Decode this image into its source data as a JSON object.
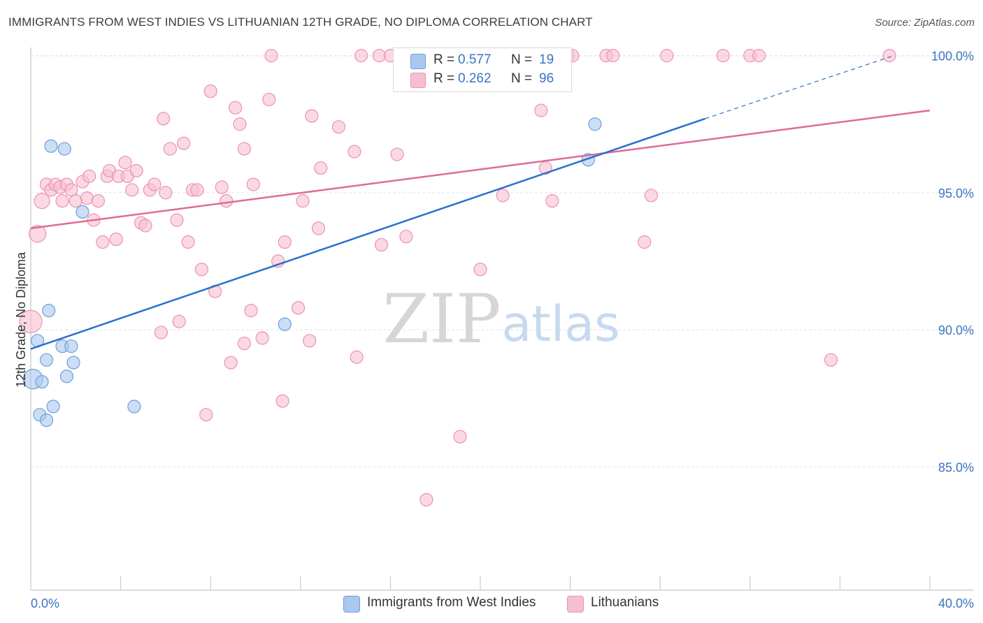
{
  "header": {
    "title": "IMMIGRANTS FROM WEST INDIES VS LITHUANIAN 12TH GRADE, NO DIPLOMA CORRELATION CHART",
    "source": "Source: ZipAtlas.com"
  },
  "legend": {
    "blue": {
      "r_label": "R =",
      "r_value": "0.577",
      "n_label": "N =",
      "n_value": "19"
    },
    "pink": {
      "r_label": "R =",
      "r_value": "0.262",
      "n_label": "N =",
      "n_value": "96"
    }
  },
  "colors": {
    "blue_fill": "#a9c8ef",
    "blue_stroke": "#6f9fd8",
    "blue_line": "#2a6fcc",
    "pink_fill": "#f6bfd0",
    "pink_stroke": "#ec92ae",
    "pink_line": "#e0699a",
    "axis_label": "#3a74c4",
    "grid": "#e2e2e2"
  },
  "watermark": {
    "part1": "ZIP",
    "part2": "atlas"
  },
  "chart_data": {
    "type": "scatter",
    "title": "IMMIGRANTS FROM WEST INDIES VS LITHUANIAN 12TH GRADE, NO DIPLOMA CORRELATION CHART",
    "xlabel": "",
    "ylabel": "12th Grade, No Diploma",
    "xlim": [
      0,
      40
    ],
    "ylim": [
      80.5,
      100.5
    ],
    "x_tick_labels": [
      "0.0%",
      "40.0%"
    ],
    "y_ticks": [
      85,
      90,
      95,
      100
    ],
    "y_tick_labels": [
      "85.0%",
      "90.0%",
      "95.0%",
      "100.0%"
    ],
    "grid": true,
    "legend_position": "top-center",
    "series": [
      {
        "name": "Immigrants from West Indies",
        "color": "#a9c8ef",
        "points": [
          [
            0.1,
            88.2,
            14
          ],
          [
            0.3,
            89.6,
            9
          ],
          [
            0.4,
            86.9,
            9
          ],
          [
            0.5,
            88.1,
            9
          ],
          [
            0.7,
            88.9,
            9
          ],
          [
            0.7,
            86.7,
            9
          ],
          [
            0.8,
            90.7,
            9
          ],
          [
            0.9,
            96.7,
            9
          ],
          [
            1.0,
            87.2,
            9
          ],
          [
            1.4,
            89.4,
            9
          ],
          [
            1.5,
            96.6,
            9
          ],
          [
            1.6,
            88.3,
            9
          ],
          [
            1.8,
            89.4,
            9
          ],
          [
            1.9,
            88.8,
            9
          ],
          [
            2.3,
            94.3,
            9
          ],
          [
            4.6,
            87.2,
            9
          ],
          [
            11.3,
            90.2,
            9
          ],
          [
            24.8,
            96.2,
            9
          ],
          [
            25.1,
            97.5,
            9
          ]
        ],
        "trend": {
          "x": [
            0,
            30
          ],
          "y": [
            89.3,
            97.7
          ],
          "dash_x": [
            30,
            38.4
          ],
          "dash_y": [
            97.7,
            100.0
          ]
        }
      },
      {
        "name": "Lithuanians",
        "color": "#f6bfd0",
        "points": [
          [
            0.0,
            90.3,
            16
          ],
          [
            0.3,
            93.5,
            12
          ],
          [
            0.5,
            94.7,
            11
          ],
          [
            0.7,
            95.3,
            9
          ],
          [
            0.9,
            95.1,
            9
          ],
          [
            1.1,
            95.3,
            9
          ],
          [
            1.3,
            95.2,
            9
          ],
          [
            1.4,
            94.7,
            9
          ],
          [
            1.6,
            95.3,
            9
          ],
          [
            1.8,
            95.1,
            9
          ],
          [
            2.0,
            94.7,
            9
          ],
          [
            2.3,
            95.4,
            9
          ],
          [
            2.5,
            94.8,
            9
          ],
          [
            2.6,
            95.6,
            9
          ],
          [
            2.8,
            94.0,
            9
          ],
          [
            3.0,
            94.7,
            9
          ],
          [
            3.2,
            93.2,
            9
          ],
          [
            3.4,
            95.6,
            9
          ],
          [
            3.5,
            95.8,
            9
          ],
          [
            3.8,
            93.3,
            9
          ],
          [
            3.9,
            95.6,
            9
          ],
          [
            4.2,
            96.1,
            9
          ],
          [
            4.3,
            95.6,
            9
          ],
          [
            4.5,
            95.1,
            9
          ],
          [
            4.7,
            95.8,
            9
          ],
          [
            4.9,
            93.9,
            9
          ],
          [
            5.1,
            93.8,
            9
          ],
          [
            5.3,
            95.1,
            9
          ],
          [
            5.5,
            95.3,
            9
          ],
          [
            5.8,
            89.9,
            9
          ],
          [
            5.9,
            97.7,
            9
          ],
          [
            6.0,
            95.0,
            9
          ],
          [
            6.2,
            96.6,
            9
          ],
          [
            6.5,
            94.0,
            9
          ],
          [
            6.6,
            90.3,
            9
          ],
          [
            6.8,
            96.8,
            9
          ],
          [
            7.0,
            93.2,
            9
          ],
          [
            7.2,
            95.1,
            9
          ],
          [
            7.4,
            95.1,
            9
          ],
          [
            7.6,
            92.2,
            9
          ],
          [
            7.8,
            86.9,
            9
          ],
          [
            8.0,
            98.7,
            9
          ],
          [
            8.2,
            91.4,
            9
          ],
          [
            8.5,
            95.2,
            9
          ],
          [
            8.7,
            94.7,
            9
          ],
          [
            8.9,
            88.8,
            9
          ],
          [
            9.1,
            98.1,
            9
          ],
          [
            9.3,
            97.5,
            9
          ],
          [
            9.5,
            89.5,
            9
          ],
          [
            9.5,
            96.6,
            9
          ],
          [
            9.8,
            90.7,
            9
          ],
          [
            9.9,
            95.3,
            9
          ],
          [
            10.3,
            89.7,
            9
          ],
          [
            10.6,
            98.4,
            9
          ],
          [
            10.7,
            100.0,
            9
          ],
          [
            11.0,
            92.5,
            9
          ],
          [
            11.2,
            87.4,
            9
          ],
          [
            11.3,
            93.2,
            9
          ],
          [
            11.9,
            90.8,
            9
          ],
          [
            12.1,
            94.7,
            9
          ],
          [
            12.4,
            89.6,
            9
          ],
          [
            12.5,
            97.8,
            9
          ],
          [
            12.8,
            93.7,
            9
          ],
          [
            12.9,
            95.9,
            9
          ],
          [
            13.7,
            97.4,
            9
          ],
          [
            14.4,
            96.5,
            9
          ],
          [
            14.5,
            89.0,
            9
          ],
          [
            14.7,
            100.0,
            9
          ],
          [
            15.5,
            100.0,
            9
          ],
          [
            15.6,
            93.1,
            9
          ],
          [
            16.0,
            100.0,
            9
          ],
          [
            16.3,
            96.4,
            9
          ],
          [
            16.7,
            93.4,
            9
          ],
          [
            17.6,
            83.8,
            9
          ],
          [
            18.0,
            100.0,
            9
          ],
          [
            19.1,
            86.1,
            9
          ],
          [
            19.6,
            100.0,
            9
          ],
          [
            20.9,
            100.0,
            9
          ],
          [
            21.0,
            94.9,
            9
          ],
          [
            22.2,
            100.0,
            9
          ],
          [
            22.7,
            98.0,
            9
          ],
          [
            22.9,
            95.9,
            9
          ],
          [
            23.2,
            94.7,
            9
          ],
          [
            23.9,
            100.0,
            9
          ],
          [
            24.1,
            100.0,
            9
          ],
          [
            25.6,
            100.0,
            9
          ],
          [
            25.9,
            100.0,
            9
          ],
          [
            27.3,
            93.2,
            9
          ],
          [
            27.6,
            94.9,
            9
          ],
          [
            28.3,
            100.0,
            9
          ],
          [
            30.8,
            100.0,
            9
          ],
          [
            32.0,
            100.0,
            9
          ],
          [
            32.4,
            100.0,
            9
          ],
          [
            35.6,
            88.9,
            9
          ],
          [
            38.2,
            100.0,
            9
          ],
          [
            20.0,
            92.2,
            9
          ]
        ],
        "trend": {
          "x": [
            0,
            40
          ],
          "y": [
            93.7,
            98.0
          ]
        }
      }
    ]
  }
}
